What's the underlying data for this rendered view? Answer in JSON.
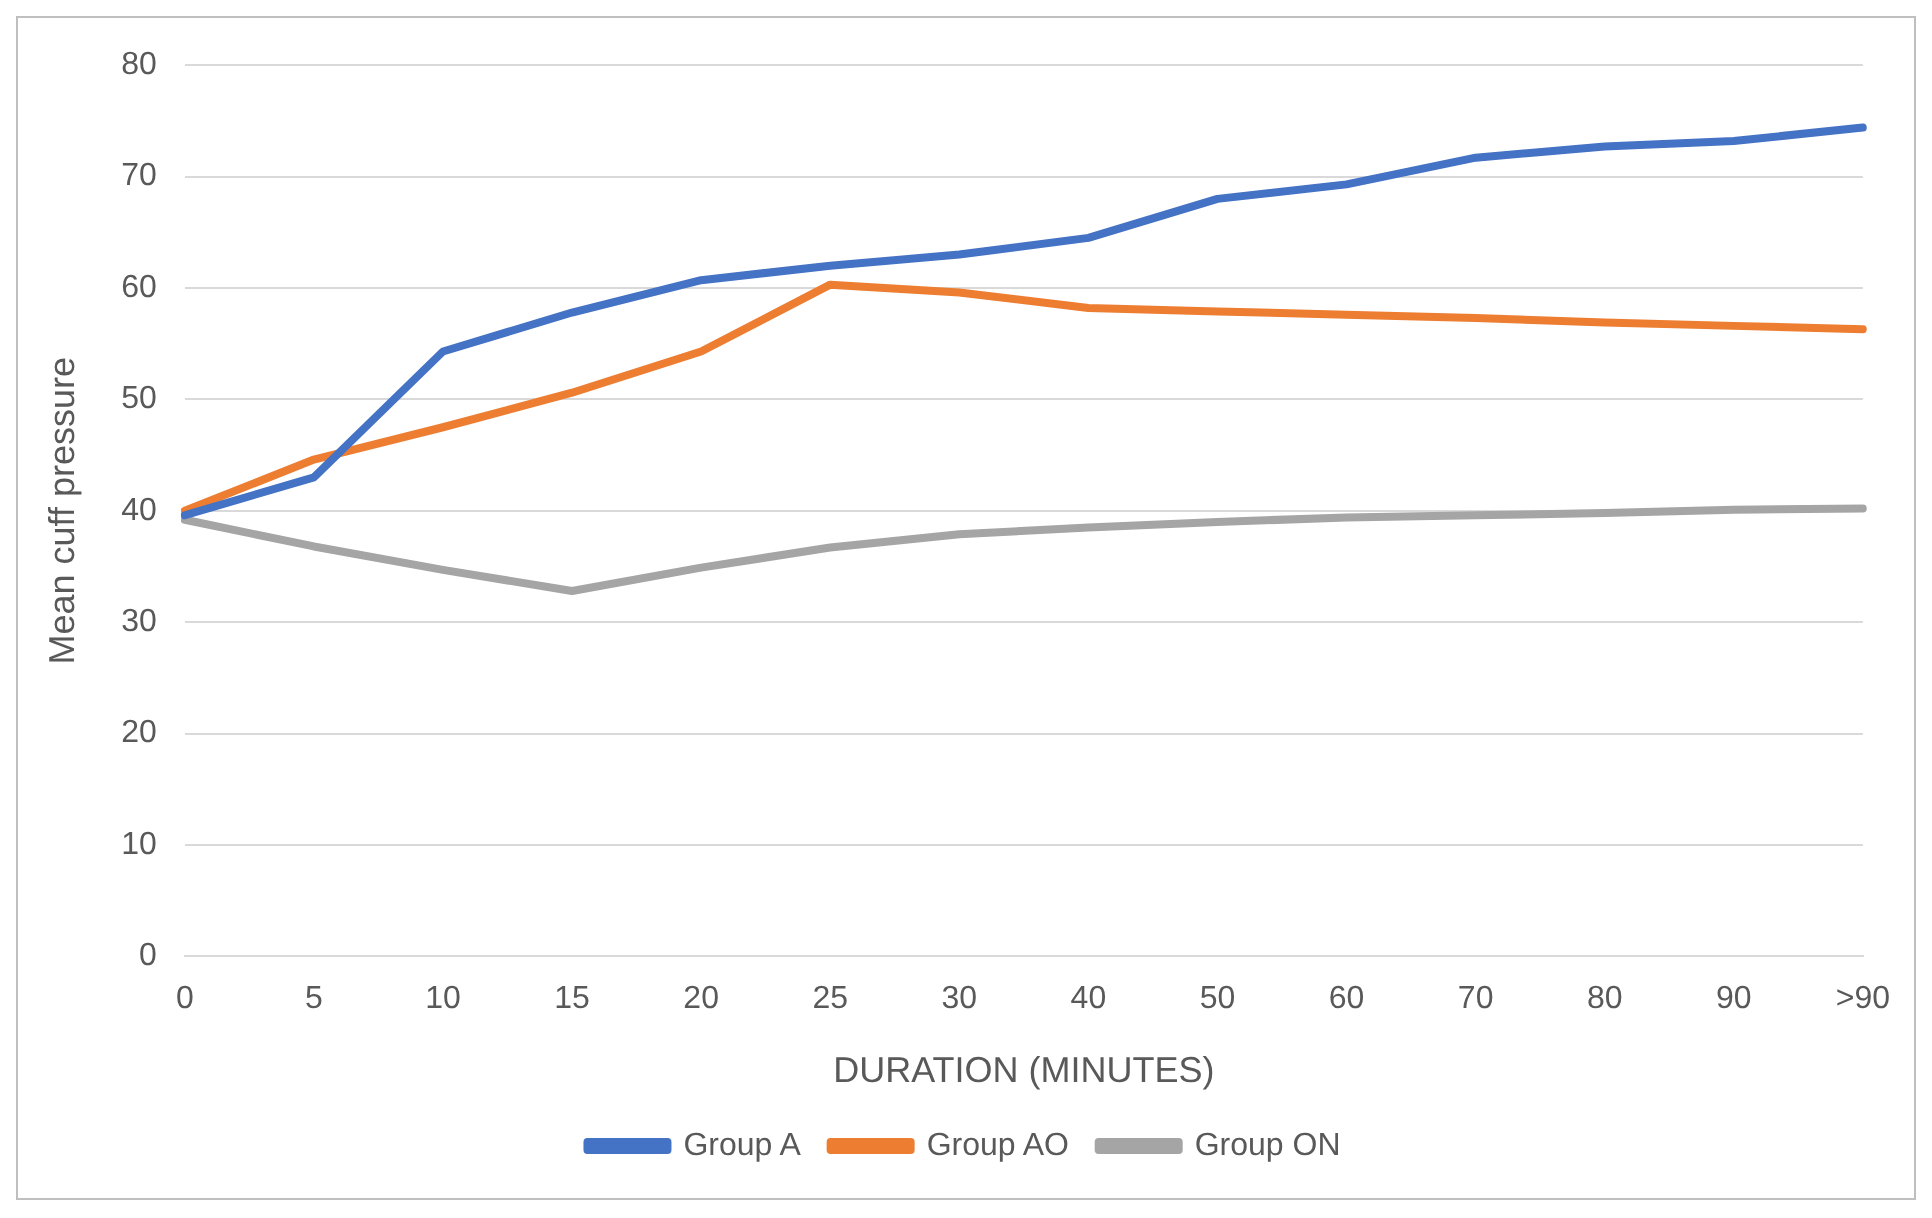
{
  "chart_data": {
    "type": "line",
    "xlabel": "DURATION (MINUTES)",
    "ylabel": "Mean cuff pressure",
    "categories": [
      "0",
      "5",
      "10",
      "15",
      "20",
      "25",
      "30",
      "40",
      "50",
      "60",
      "70",
      "80",
      "90",
      ">90"
    ],
    "series": [
      {
        "name": "Group A",
        "color": "#4472c4",
        "values": [
          39.6,
          43,
          54.3,
          57.8,
          60.7,
          62,
          63,
          64.5,
          68,
          69.3,
          71.7,
          72.7,
          73.2,
          74.4
        ]
      },
      {
        "name": "Group AO",
        "color": "#ed7d31",
        "values": [
          40,
          44.6,
          47.5,
          50.6,
          54.3,
          60.3,
          59.6,
          58.2,
          57.9,
          57.6,
          57.3,
          56.9,
          56.6,
          56.3
        ]
      },
      {
        "name": "Group ON",
        "color": "#a5a5a5",
        "values": [
          39.2,
          36.8,
          34.7,
          32.8,
          34.9,
          36.7,
          37.9,
          38.5,
          39,
          39.4,
          39.6,
          39.8,
          40.1,
          40.2
        ]
      }
    ],
    "ylim": [
      0,
      80
    ],
    "yticks": [
      0,
      10,
      20,
      30,
      40,
      50,
      60,
      70,
      80
    ],
    "grid": "y",
    "legend": "bottom",
    "marker": "none",
    "line_style": "solid"
  }
}
